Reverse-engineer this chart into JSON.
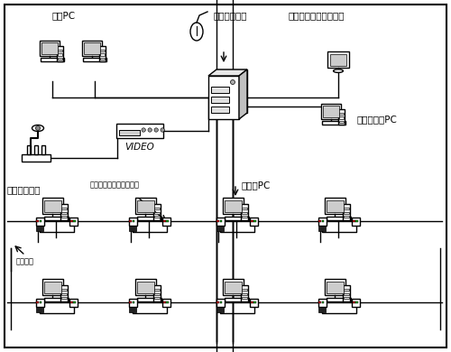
{
  "bg_color": "#ffffff",
  "line_color": "#000000",
  "line_width": 1.0,
  "labels": {
    "master": "マスター装置",
    "teacher_pc": "先生PC",
    "video_monitor": "先生用ビデオモニター",
    "console_pc": "コンソールPC",
    "kyozai": "教材提示装置",
    "video": "VIDEO",
    "student_pc": "生徒用PC",
    "student_unit": "スチューデントユニット",
    "branch": "ブランチ"
  }
}
